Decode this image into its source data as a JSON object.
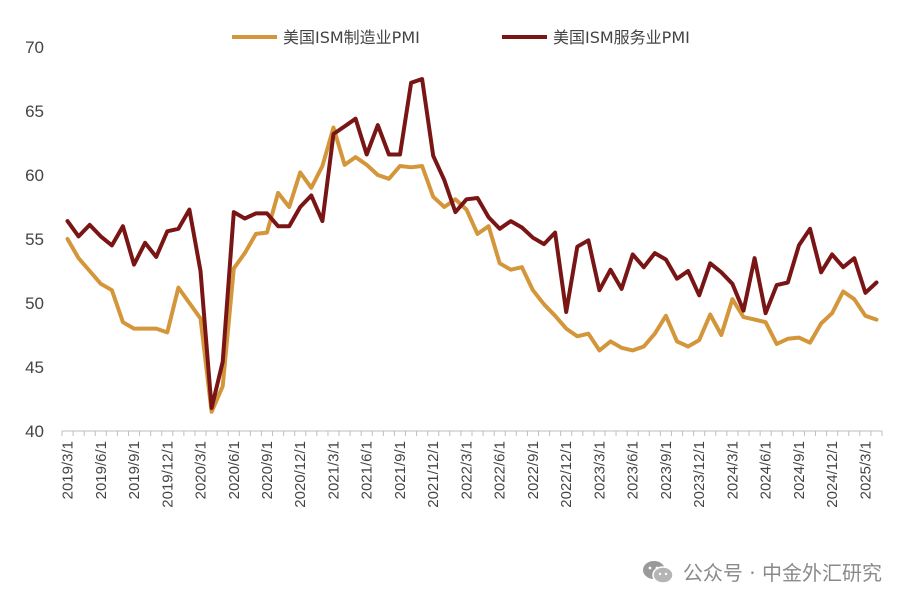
{
  "chart_data": {
    "type": "line",
    "ylim": [
      40,
      70
    ],
    "yticks": [
      40,
      45,
      50,
      55,
      60,
      65,
      70
    ],
    "x": [
      "2019/3/1",
      "2019/4/1",
      "2019/5/1",
      "2019/6/1",
      "2019/7/1",
      "2019/8/1",
      "2019/9/1",
      "2019/10/1",
      "2019/11/1",
      "2019/12/1",
      "2020/1/1",
      "2020/2/1",
      "2020/3/1",
      "2020/4/1",
      "2020/5/1",
      "2020/6/1",
      "2020/7/1",
      "2020/8/1",
      "2020/9/1",
      "2020/10/1",
      "2020/11/1",
      "2020/12/1",
      "2021/1/1",
      "2021/2/1",
      "2021/3/1",
      "2021/4/1",
      "2021/5/1",
      "2021/6/1",
      "2021/7/1",
      "2021/8/1",
      "2021/9/1",
      "2021/10/1",
      "2021/11/1",
      "2021/12/1",
      "2022/1/1",
      "2022/2/1",
      "2022/3/1",
      "2022/4/1",
      "2022/5/1",
      "2022/6/1",
      "2022/7/1",
      "2022/8/1",
      "2022/9/1",
      "2022/10/1",
      "2022/11/1",
      "2022/12/1",
      "2023/1/1",
      "2023/2/1",
      "2023/3/1",
      "2023/4/1",
      "2023/5/1",
      "2023/6/1",
      "2023/7/1",
      "2023/8/1",
      "2023/9/1",
      "2023/10/1",
      "2023/11/1",
      "2023/12/1",
      "2024/1/1",
      "2024/2/1",
      "2024/3/1",
      "2024/4/1",
      "2024/5/1",
      "2024/6/1",
      "2024/7/1",
      "2024/8/1",
      "2024/9/1",
      "2024/10/1",
      "2024/11/1",
      "2024/12/1",
      "2025/1/1",
      "2025/2/1",
      "2025/3/1",
      "2025/4/1"
    ],
    "xticks": [
      "2019/3/1",
      "2019/6/1",
      "2019/9/1",
      "2019/12/1",
      "2020/3/1",
      "2020/6/1",
      "2020/9/1",
      "2020/12/1",
      "2021/3/1",
      "2021/6/1",
      "2021/9/1",
      "2021/12/1",
      "2022/3/1",
      "2022/6/1",
      "2022/9/1",
      "2022/12/1",
      "2023/3/1",
      "2023/6/1",
      "2023/9/1",
      "2023/12/1",
      "2024/3/1",
      "2024/6/1",
      "2024/9/1",
      "2024/12/1",
      "2025/3/1"
    ],
    "series": [
      {
        "name": "美国ISM制造业PMI",
        "color": "#D4963A",
        "values": [
          55.0,
          53.5,
          52.5,
          51.5,
          51.0,
          48.5,
          48.0,
          48.0,
          48.0,
          47.7,
          51.2,
          50.0,
          48.8,
          41.5,
          43.5,
          52.7,
          53.9,
          55.4,
          55.5,
          58.6,
          57.5,
          60.2,
          59.0,
          60.7,
          63.7,
          60.8,
          61.4,
          60.8,
          60.0,
          59.7,
          60.7,
          60.6,
          60.7,
          58.3,
          57.5,
          58.1,
          57.3,
          55.4,
          56.0,
          53.1,
          52.6,
          52.8,
          51.0,
          49.9,
          49.0,
          48.0,
          47.4,
          47.6,
          46.3,
          47.0,
          46.5,
          46.3,
          46.6,
          47.6,
          49.0,
          47.0,
          46.6,
          47.1,
          49.1,
          47.5,
          50.3,
          48.9,
          48.7,
          48.5,
          46.8,
          47.2,
          47.3,
          46.9,
          48.4,
          49.2,
          50.9,
          50.3,
          49.0,
          48.7
        ]
      },
      {
        "name": "美国ISM服务业PMI",
        "color": "#7A1515",
        "values": [
          56.4,
          55.2,
          56.1,
          55.2,
          54.5,
          56.0,
          53.0,
          54.7,
          53.6,
          55.6,
          55.8,
          57.3,
          52.5,
          41.8,
          45.4,
          57.1,
          56.6,
          57.0,
          57.0,
          56.0,
          56.0,
          57.5,
          58.4,
          56.4,
          63.2,
          63.8,
          64.4,
          61.6,
          63.9,
          61.6,
          61.6,
          67.2,
          67.5,
          61.5,
          59.6,
          57.1,
          58.1,
          58.2,
          56.7,
          55.8,
          56.4,
          55.9,
          55.1,
          54.6,
          55.5,
          49.3,
          54.4,
          54.9,
          51.0,
          52.6,
          51.1,
          53.8,
          52.8,
          53.9,
          53.4,
          51.9,
          52.5,
          50.6,
          53.1,
          52.4,
          51.5,
          49.4,
          53.5,
          49.2,
          51.4,
          51.6,
          54.5,
          55.8,
          52.4,
          53.8,
          52.8,
          53.5,
          50.8,
          51.6
        ]
      }
    ]
  },
  "watermark": {
    "text": "公众号 · 中金外汇研究"
  }
}
